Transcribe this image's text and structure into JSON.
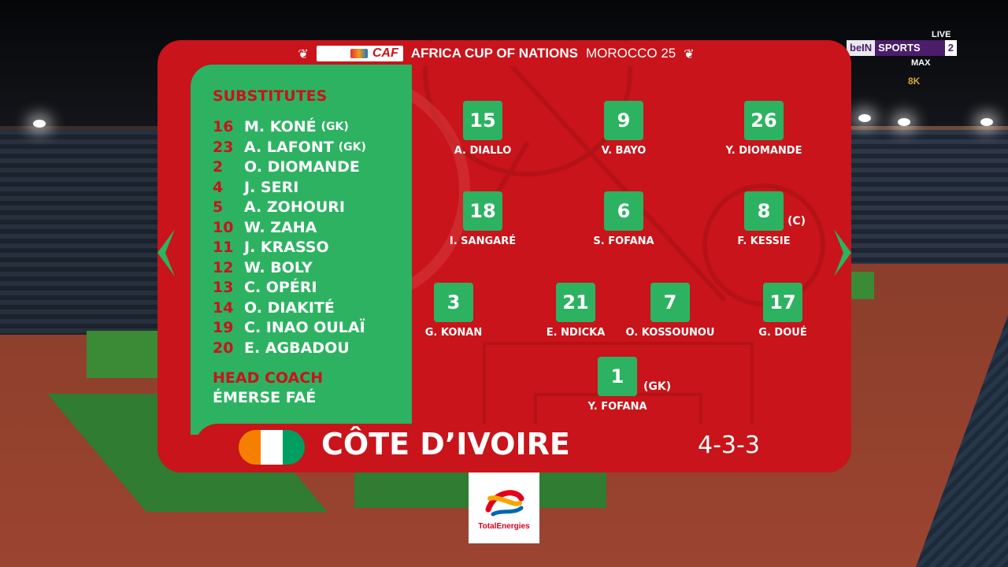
{
  "broadcaster": {
    "live": "LIVE",
    "brand_a": "beIN",
    "brand_b": "SPORTS",
    "channel": "2",
    "tier": "MAX",
    "quality": "8K"
  },
  "header": {
    "caf": "CAF",
    "title": "AFRICA CUP OF NATIONS",
    "host": "MOROCCO 25"
  },
  "substitutes": {
    "title": "SUBSTITUTES",
    "players": [
      {
        "number": "16",
        "name": "M. KONÉ",
        "tag": "(GK)"
      },
      {
        "number": "23",
        "name": "A. LAFONT",
        "tag": "(GK)"
      },
      {
        "number": "2",
        "name": "O. DIOMANDE",
        "tag": ""
      },
      {
        "number": "4",
        "name": "J. SERI",
        "tag": ""
      },
      {
        "number": "5",
        "name": "A. ZOHOURI",
        "tag": ""
      },
      {
        "number": "10",
        "name": "W. ZAHA",
        "tag": ""
      },
      {
        "number": "11",
        "name": "J. KRASSO",
        "tag": ""
      },
      {
        "number": "12",
        "name": "W. BOLY",
        "tag": ""
      },
      {
        "number": "13",
        "name": "C. OPÉRI",
        "tag": ""
      },
      {
        "number": "14",
        "name": "O. DIAKITÉ",
        "tag": ""
      },
      {
        "number": "19",
        "name": "C. INAO OULAÏ",
        "tag": ""
      },
      {
        "number": "20",
        "name": "E. AGBADOU",
        "tag": ""
      }
    ],
    "coach_title": "HEAD COACH",
    "coach_name": "ÉMERSE FAÉ"
  },
  "lineup": {
    "forwards": [
      {
        "number": "15",
        "name": "A. DIALLO"
      },
      {
        "number": "9",
        "name": "V. BAYO"
      },
      {
        "number": "26",
        "name": "Y. DIOMANDE"
      }
    ],
    "midfielders": [
      {
        "number": "18",
        "name": "I. SANGARÉ"
      },
      {
        "number": "6",
        "name": "S. FOFANA"
      },
      {
        "number": "8",
        "name": "F. KESSIE",
        "tag": "(C)"
      }
    ],
    "defenders": [
      {
        "number": "3",
        "name": "G. KONAN"
      },
      {
        "number": "21",
        "name": "E. NDICKA"
      },
      {
        "number": "7",
        "name": "O. KOSSOUNOU"
      },
      {
        "number": "17",
        "name": "G. DOUÉ"
      }
    ],
    "goalkeeper": {
      "number": "1",
      "name": "Y. FOFANA",
      "tag": "(GK)"
    }
  },
  "team": {
    "name": "CÔTE D’IVOIRE",
    "formation": "4-3-3",
    "flag_colors": [
      "#f77f00",
      "#ffffff",
      "#009e60"
    ]
  },
  "sponsor": {
    "name": "TotalEnergies"
  },
  "colors": {
    "panel_red": "#c8141a",
    "accent_green": "#2db262"
  }
}
